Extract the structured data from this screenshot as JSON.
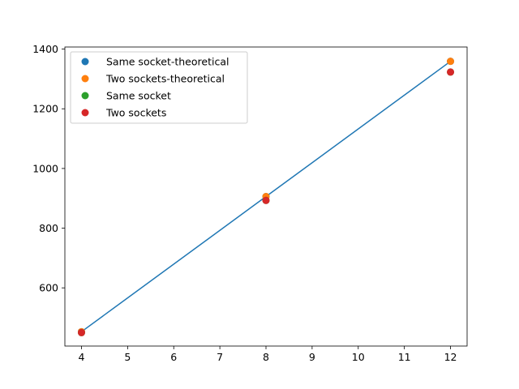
{
  "chart_data": {
    "type": "scatter",
    "title": "",
    "xlabel": "",
    "ylabel": "",
    "xlim": [
      3.64,
      12.36
    ],
    "ylim": [
      405,
      1407
    ],
    "xticks": [
      4,
      5,
      6,
      7,
      8,
      9,
      10,
      11,
      12
    ],
    "yticks": [
      600,
      800,
      1000,
      1200,
      1400
    ],
    "grid": false,
    "legend_position": "top-left",
    "line": {
      "color": "#1f77b4",
      "x": [
        4,
        8,
        12
      ],
      "y": [
        453,
        906,
        1359
      ]
    },
    "series": [
      {
        "name": "Same socket-theoretical",
        "color": "#1f77b4",
        "x": [
          4,
          8,
          12
        ],
        "y": [
          453,
          906,
          1359
        ]
      },
      {
        "name": "Two sockets-theoretical",
        "color": "#ff7f0e",
        "x": [
          4,
          8,
          12
        ],
        "y": [
          453,
          906,
          1359
        ]
      },
      {
        "name": "Same socket",
        "color": "#2ca02c",
        "x": [
          4,
          8,
          12
        ],
        "y": [
          450,
          893,
          1323
        ]
      },
      {
        "name": "Two sockets",
        "color": "#d62728",
        "x": [
          4,
          8,
          12
        ],
        "y": [
          450,
          893,
          1323
        ]
      }
    ]
  }
}
